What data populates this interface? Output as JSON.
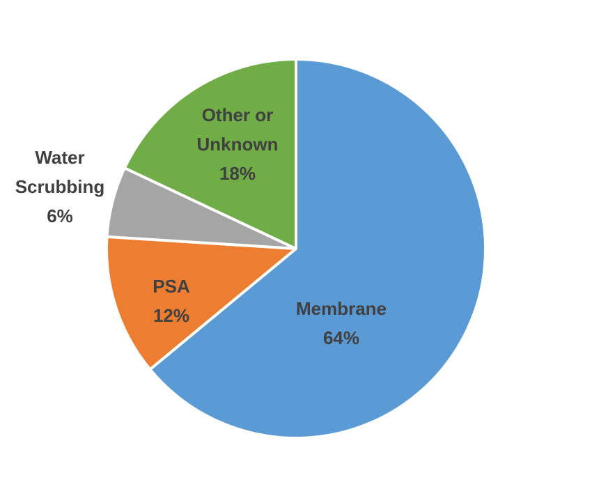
{
  "chart_data": {
    "type": "pie",
    "title": "",
    "start_angle_deg": 0,
    "direction": "clockwise",
    "slices": [
      {
        "label": "Membrane",
        "value": 64,
        "value_label": "64%",
        "color": "#5B9BD5"
      },
      {
        "label": "PSA",
        "value": 12,
        "value_label": "12%",
        "color": "#ED7D31"
      },
      {
        "label": "Water Scrubbing",
        "value": 6,
        "value_label": "6%",
        "color": "#A5A5A5"
      },
      {
        "label": "Other or Unknown",
        "value": 18,
        "value_label": "18%",
        "color": "#70AD47"
      }
    ],
    "legend": "none",
    "label_text_color": "#404040"
  }
}
